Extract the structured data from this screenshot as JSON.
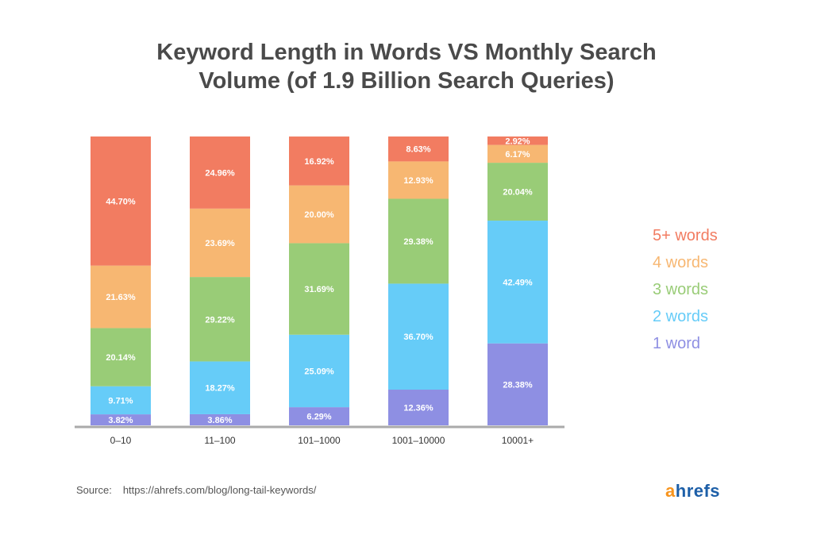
{
  "title": {
    "line1": "Keyword Length in Words VS Monthly Search",
    "line2": "Volume (of 1.9 Billion Search Queries)"
  },
  "chart_data": {
    "type": "bar",
    "stacked": true,
    "categories": [
      "0–10",
      "11–100",
      "101–1000",
      "1001–10000",
      "10001+"
    ],
    "series": [
      {
        "name": "1 word",
        "color": "#8e8fe3",
        "values": [
          3.82,
          3.86,
          6.29,
          12.36,
          28.38
        ],
        "labels": [
          "3.82%",
          "3.86%",
          "6.29%",
          "12.36%",
          "28.38%"
        ]
      },
      {
        "name": "2 words",
        "color": "#66ccf8",
        "values": [
          9.71,
          18.27,
          25.09,
          36.7,
          42.49
        ],
        "labels": [
          "9.71%",
          "18.27%",
          "25.09%",
          "36.70%",
          "42.49%"
        ]
      },
      {
        "name": "3 words",
        "color": "#99cc77",
        "values": [
          20.14,
          29.22,
          31.69,
          29.38,
          20.04
        ],
        "labels": [
          "20.14%",
          "29.22%",
          "31.69%",
          "29.38%",
          "20.04%"
        ]
      },
      {
        "name": "4 words",
        "color": "#f7b772",
        "values": [
          21.63,
          23.69,
          20.0,
          12.93,
          6.17
        ],
        "labels": [
          "21.63%",
          "23.69%",
          "20.00%",
          "12.93%",
          "6.17%"
        ]
      },
      {
        "name": "5+ words",
        "color": "#f27c61",
        "values": [
          44.7,
          24.96,
          16.92,
          8.63,
          2.92
        ],
        "labels": [
          "44.70%",
          "24.96%",
          "16.92%",
          "8.63%",
          "2.92%"
        ]
      }
    ],
    "ylim": [
      0,
      100
    ],
    "grid": false,
    "legend_position": "right"
  },
  "legend": {
    "items": [
      {
        "label": "5+ words",
        "color": "#f27c61"
      },
      {
        "label": "4 words",
        "color": "#f7b772"
      },
      {
        "label": "3 words",
        "color": "#99cc77"
      },
      {
        "label": "2 words",
        "color": "#66ccf8"
      },
      {
        "label": "1 word",
        "color": "#8e8fe3"
      }
    ]
  },
  "footer": {
    "source_label": "Source:",
    "source_url": "https://ahrefs.com/blog/long-tail-keywords/",
    "logo_a": "a",
    "logo_rest": "hrefs"
  }
}
